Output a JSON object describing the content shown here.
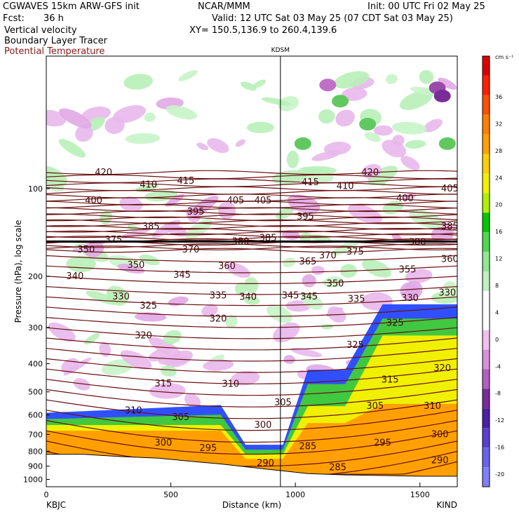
{
  "header": {
    "model": "CGWAVES 15km ARW-GFS init",
    "center": "NCAR/MMM",
    "init": "Init: 00 UTC Fri 02 May 25",
    "fcst_label": "Fcst:",
    "fcst_value": "36 h",
    "valid": "Valid: 12 UTC Sat 03 May 25 (07 CDT Sat 03 May 25)",
    "field1": "Vertical velocity",
    "field2": "Boundary Layer Tracer",
    "field3": "Potential Temperature",
    "xy": "XY= 150.5,136.9 to 260.4,139.6"
  },
  "colors": {
    "theta_contour": "#6b0f0f",
    "theta_label": "#8b1a1a"
  },
  "chart_data": {
    "type": "heatmap",
    "ylabel": "Pressure (hPa), log scale",
    "xlabel": "Distance (km)",
    "left_station": "KBJC",
    "right_station": "KIND",
    "mid_station": "KDSM",
    "mid_station_km": 940,
    "xlim": [
      0,
      1650
    ],
    "ylim": [
      1060,
      35
    ],
    "y_log_scale": true,
    "x_ticks": [
      0,
      500,
      1000,
      1500
    ],
    "x_tick_labels": [
      "0",
      "500",
      "1000",
      "1500"
    ],
    "y_ticks": [
      100,
      200,
      300,
      400,
      500,
      600,
      700,
      800,
      900,
      1000
    ],
    "y_tick_labels": [
      "100",
      "200",
      "300",
      "400",
      "500",
      "600",
      "700",
      "800",
      "900",
      "1000"
    ],
    "colorbar": {
      "unit": "cm s⁻¹",
      "levels": [
        -20,
        -16,
        -12,
        -8,
        -4,
        0,
        4,
        8,
        12,
        16,
        20,
        24,
        28,
        32,
        36
      ],
      "level_labels": [
        "-20",
        "-16",
        "-12",
        "-8",
        "-4",
        "0",
        "4",
        "8",
        "12",
        "16",
        "20",
        "24",
        "28",
        "32",
        "36"
      ],
      "colors": [
        "#8080ff",
        "#6a62ee",
        "#5a3fd4",
        "#4b1fa8",
        "#7a2c9a",
        "#b060c0",
        "#d890d8",
        "#f0c0f0",
        "#ffffff",
        "#ffffff",
        "#c0f0c0",
        "#90e890",
        "#50d850",
        "#00c800",
        "#b0f000",
        "#f0f000",
        "#ffd000",
        "#ffa000",
        "#ff8000",
        "#ff5000",
        "#ff2000",
        "#e00000"
      ]
    },
    "potential_temperature_labels": [
      {
        "text": "420",
        "km": 230,
        "p": 88
      },
      {
        "text": "410",
        "km": 410,
        "p": 97
      },
      {
        "text": "415",
        "km": 560,
        "p": 94
      },
      {
        "text": "400",
        "km": 190,
        "p": 110
      },
      {
        "text": "395",
        "km": 600,
        "p": 120
      },
      {
        "text": "405",
        "km": 760,
        "p": 110
      },
      {
        "text": "405",
        "km": 870,
        "p": 110
      },
      {
        "text": "385",
        "km": 420,
        "p": 135
      },
      {
        "text": "375",
        "km": 270,
        "p": 150
      },
      {
        "text": "370",
        "km": 580,
        "p": 162
      },
      {
        "text": "380",
        "km": 780,
        "p": 152
      },
      {
        "text": "385",
        "km": 890,
        "p": 148
      },
      {
        "text": "350",
        "km": 160,
        "p": 162
      },
      {
        "text": "360",
        "km": 725,
        "p": 185
      },
      {
        "text": "350",
        "km": 360,
        "p": 183
      },
      {
        "text": "345",
        "km": 545,
        "p": 198
      },
      {
        "text": "340",
        "km": 115,
        "p": 200
      },
      {
        "text": "330",
        "km": 300,
        "p": 235
      },
      {
        "text": "325",
        "km": 410,
        "p": 253
      },
      {
        "text": "335",
        "km": 690,
        "p": 233
      },
      {
        "text": "340",
        "km": 810,
        "p": 236
      },
      {
        "text": "345",
        "km": 980,
        "p": 233
      },
      {
        "text": "320",
        "km": 690,
        "p": 280
      },
      {
        "text": "320",
        "km": 390,
        "p": 320
      },
      {
        "text": "315",
        "km": 470,
        "p": 468
      },
      {
        "text": "310",
        "km": 740,
        "p": 470
      },
      {
        "text": "310",
        "km": 350,
        "p": 580
      },
      {
        "text": "305",
        "km": 540,
        "p": 612
      },
      {
        "text": "305",
        "km": 950,
        "p": 545
      },
      {
        "text": "300",
        "km": 870,
        "p": 650
      },
      {
        "text": "300",
        "km": 470,
        "p": 750
      },
      {
        "text": "295",
        "km": 650,
        "p": 780
      },
      {
        "text": "290",
        "km": 880,
        "p": 880
      },
      {
        "text": "285",
        "km": 1050,
        "p": 770
      },
      {
        "text": "415",
        "km": 1060,
        "p": 95
      },
      {
        "text": "395",
        "km": 1040,
        "p": 125
      },
      {
        "text": "410",
        "km": 1200,
        "p": 98
      },
      {
        "text": "420",
        "km": 1300,
        "p": 88
      },
      {
        "text": "400",
        "km": 1440,
        "p": 108
      },
      {
        "text": "405",
        "km": 1620,
        "p": 100
      },
      {
        "text": "385",
        "km": 1620,
        "p": 135
      },
      {
        "text": "365",
        "km": 1050,
        "p": 178
      },
      {
        "text": "370",
        "km": 1130,
        "p": 170
      },
      {
        "text": "375",
        "km": 1240,
        "p": 165
      },
      {
        "text": "380",
        "km": 1490,
        "p": 153
      },
      {
        "text": "360",
        "km": 1620,
        "p": 175
      },
      {
        "text": "355",
        "km": 1450,
        "p": 190
      },
      {
        "text": "350",
        "km": 1160,
        "p": 212
      },
      {
        "text": "345",
        "km": 1055,
        "p": 235
      },
      {
        "text": "335",
        "km": 1245,
        "p": 240
      },
      {
        "text": "330",
        "km": 1460,
        "p": 238
      },
      {
        "text": "330",
        "km": 1610,
        "p": 228
      },
      {
        "text": "325",
        "km": 1240,
        "p": 345
      },
      {
        "text": "325",
        "km": 1400,
        "p": 290
      },
      {
        "text": "315",
        "km": 1380,
        "p": 455
      },
      {
        "text": "320",
        "km": 1590,
        "p": 415
      },
      {
        "text": "305",
        "km": 1320,
        "p": 560
      },
      {
        "text": "310",
        "km": 1550,
        "p": 560
      },
      {
        "text": "300",
        "km": 1580,
        "p": 700
      },
      {
        "text": "295",
        "km": 1350,
        "p": 750
      },
      {
        "text": "290",
        "km": 1580,
        "p": 860
      },
      {
        "text": "285",
        "km": 1170,
        "p": 910
      }
    ],
    "terrain_pressure": [
      {
        "km": 0,
        "p": 820
      },
      {
        "km": 150,
        "p": 820
      },
      {
        "km": 300,
        "p": 835
      },
      {
        "km": 450,
        "p": 845
      },
      {
        "km": 600,
        "p": 870
      },
      {
        "km": 700,
        "p": 885
      },
      {
        "km": 800,
        "p": 905
      },
      {
        "km": 900,
        "p": 925
      },
      {
        "km": 950,
        "p": 935
      },
      {
        "km": 1050,
        "p": 955
      },
      {
        "km": 1200,
        "p": 965
      },
      {
        "km": 1350,
        "p": 970
      },
      {
        "km": 1500,
        "p": 975
      },
      {
        "km": 1650,
        "p": 975
      }
    ]
  }
}
